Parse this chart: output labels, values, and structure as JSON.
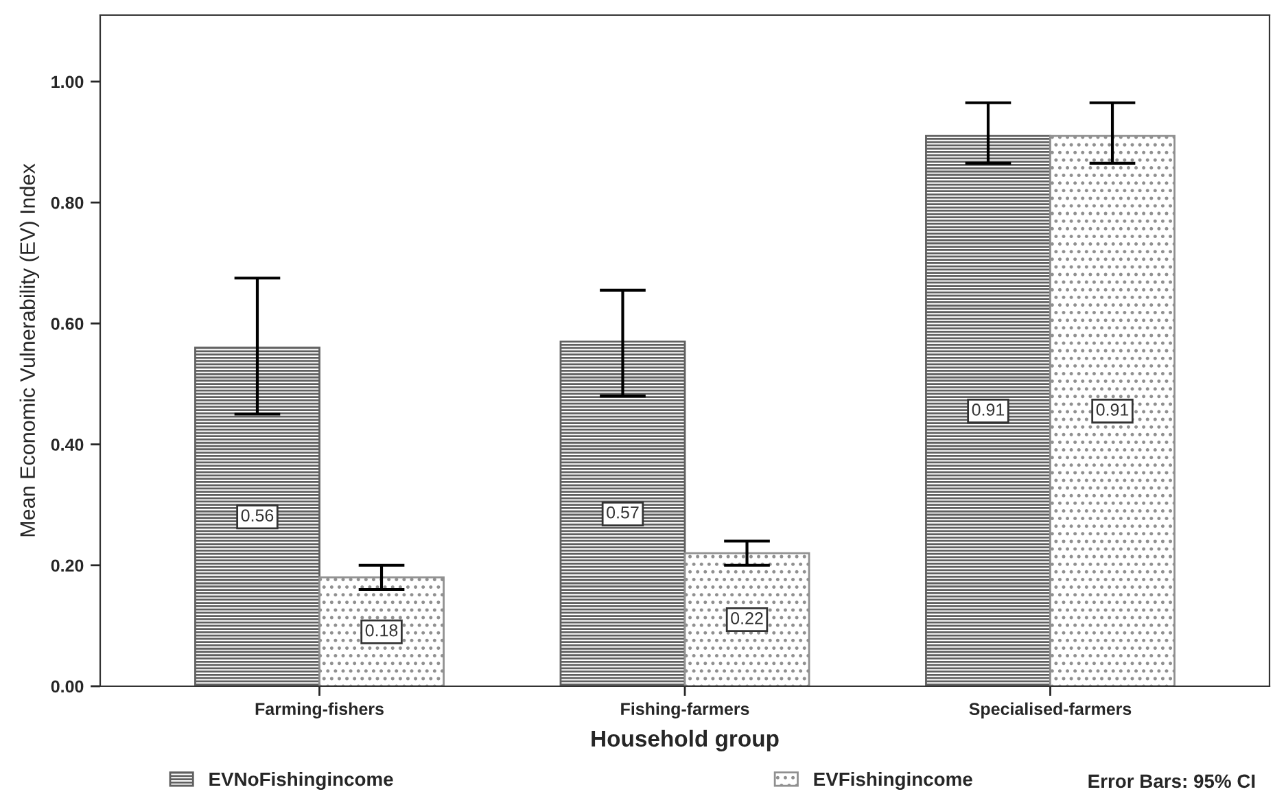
{
  "chart_data": {
    "type": "bar",
    "xlabel": "Household group",
    "ylabel": "Mean Economic Vulnerability (EV) Index",
    "categories": [
      "Farming-fishers",
      "Fishing-farmers",
      "Specialised-farmers"
    ],
    "series": [
      {
        "name": "EVNoFishingincome",
        "color": "#606060",
        "values": [
          0.56,
          0.57,
          0.91
        ],
        "errors": [
          [
            0.45,
            0.675
          ],
          [
            0.48,
            0.655
          ],
          [
            0.865,
            0.965
          ]
        ]
      },
      {
        "name": "EVFishingincome",
        "color": "#909090",
        "values": [
          0.18,
          0.22,
          0.91
        ],
        "errors": [
          [
            0.16,
            0.2
          ],
          [
            0.2,
            0.24
          ],
          [
            0.865,
            0.965
          ]
        ]
      }
    ],
    "ylim": [
      0,
      1.11
    ],
    "yticks": [
      {
        "value": 0,
        "label": "0.00"
      },
      {
        "value": 0.2,
        "label": "0.20"
      },
      {
        "value": 0.4,
        "label": "0.40"
      },
      {
        "value": 0.6,
        "label": "0.60"
      },
      {
        "value": 0.8,
        "label": "0.80"
      },
      {
        "value": 1.0,
        "label": "1.00"
      }
    ],
    "data_labels": true,
    "grid": false,
    "legend": "bottom",
    "annotations": [
      "Error Bars: 95% CI"
    ]
  }
}
